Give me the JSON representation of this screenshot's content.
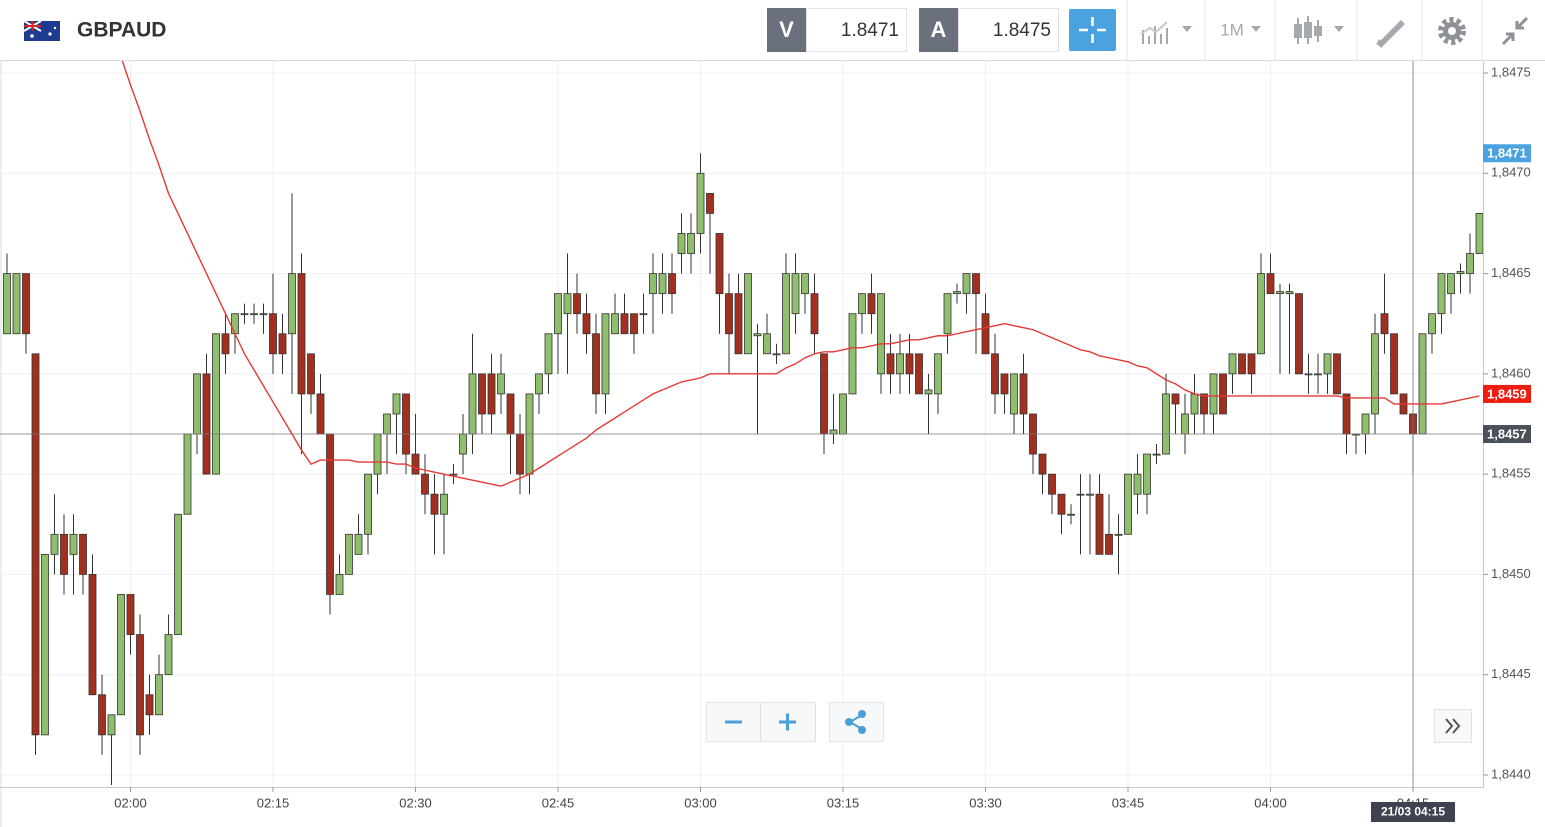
{
  "toolbar": {
    "symbol": "GBPAUD",
    "sell": {
      "label": "V",
      "price": "1.8471"
    },
    "buy": {
      "label": "A",
      "price": "1.8475"
    },
    "timeframe": "1M"
  },
  "chart_data": {
    "type": "candlestick",
    "categories": [
      null,
      null,
      null,
      null,
      null,
      null,
      null,
      null,
      null,
      null,
      null,
      null,
      null,
      "02:00",
      null,
      null,
      null,
      null,
      null,
      null,
      null,
      null,
      null,
      null,
      null,
      null,
      null,
      null,
      "02:15",
      null,
      null,
      null,
      null,
      null,
      null,
      null,
      null,
      null,
      null,
      null,
      null,
      null,
      null,
      "02:30",
      null,
      null,
      null,
      null,
      null,
      null,
      null,
      null,
      null,
      null,
      null,
      null,
      null,
      null,
      "02:45",
      null,
      null,
      null,
      null,
      null,
      null,
      null,
      null,
      null,
      null,
      null,
      null,
      null,
      null,
      "03:00",
      null,
      null,
      null,
      null,
      null,
      null,
      null,
      null,
      null,
      null,
      null,
      null,
      null,
      null,
      "03:15",
      null,
      null,
      null,
      null,
      null,
      null,
      null,
      null,
      null,
      null,
      null,
      null,
      null,
      null,
      "03:30",
      null,
      null,
      null,
      null,
      null,
      null,
      null,
      null,
      null,
      null,
      null,
      null,
      null,
      null,
      "03:45",
      null,
      null,
      null,
      null,
      null,
      null,
      null,
      null,
      null,
      null,
      null,
      null,
      null,
      null,
      "04:00",
      null,
      null,
      null,
      null,
      null,
      null,
      null,
      null,
      null,
      null,
      null,
      null,
      null,
      null,
      "04:15",
      null,
      null,
      null,
      null,
      null,
      null,
      null
    ],
    "open": [
      1.8462,
      1.8462,
      1.8465,
      1.8461,
      1.8442,
      1.8451,
      1.8452,
      1.8451,
      1.8452,
      1.845,
      1.8444,
      1.8442,
      1.8443,
      1.8449,
      1.8447,
      1.8444,
      1.8443,
      1.8445,
      1.8447,
      1.8453,
      1.8457,
      1.846,
      1.8455,
      1.8462,
      1.8462,
      1.8463,
      1.8463,
      1.8463,
      1.8463,
      1.8462,
      1.8462,
      1.8465,
      1.8461,
      1.8459,
      1.8457,
      1.8449,
      1.845,
      1.8451,
      1.8452,
      1.8455,
      1.8457,
      1.8458,
      1.8459,
      1.8456,
      1.8455,
      1.8454,
      1.8453,
      1.8455,
      1.8456,
      1.8457,
      1.846,
      1.846,
      1.8459,
      1.8459,
      1.8457,
      1.8455,
      1.8459,
      1.846,
      1.8462,
      1.8463,
      1.8464,
      1.8463,
      1.8462,
      1.8459,
      1.8462,
      1.8463,
      1.8463,
      1.8463,
      1.8464,
      1.8464,
      1.8465,
      1.8466,
      1.8466,
      1.8467,
      1.8469,
      1.8467,
      1.8464,
      1.8464,
      1.8461,
      1.84619,
      1.8461,
      1.8461,
      1.8461,
      1.8463,
      1.8464,
      1.8464,
      1.8461,
      1.8457,
      1.8457,
      1.8459,
      1.8463,
      1.8464,
      1.846,
      1.8461,
      1.846,
      1.8461,
      1.8461,
      1.8459,
      1.8459,
      1.8462,
      1.8464,
      1.8464,
      1.8465,
      1.8463,
      1.8461,
      1.846,
      1.8458,
      1.846,
      1.8458,
      1.8456,
      1.8455,
      1.8454,
      1.8453,
      1.8454,
      1.8454,
      1.8454,
      1.8452,
      1.8452,
      1.8452,
      1.8454,
      1.8454,
      1.8456,
      1.8456,
      1.8459,
      1.8457,
      1.8458,
      1.8459,
      1.8458,
      1.846,
      1.846,
      1.8461,
      1.8461,
      1.8461,
      1.8465,
      1.8464,
      1.8464,
      1.8464,
      1.846,
      1.846,
      1.846,
      1.8461,
      1.8459,
      1.8457,
      1.8457,
      1.8458,
      1.8463,
      1.8462,
      1.8459,
      1.8458,
      1.8457,
      1.8462,
      1.8463,
      1.8464,
      1.8465,
      1.8465,
      1.8466
    ],
    "high": [
      1.8466,
      1.8465,
      1.8465,
      1.8461,
      1.8451,
      1.8454,
      1.8453,
      1.8453,
      1.8452,
      1.8451,
      1.8445,
      1.8443,
      1.8449,
      1.8449,
      1.8448,
      1.8445,
      1.8446,
      1.8448,
      1.8453,
      1.8457,
      1.846,
      1.8461,
      1.8462,
      1.8463,
      1.8463,
      1.84635,
      1.84635,
      1.84635,
      1.8465,
      1.8463,
      1.8469,
      1.8466,
      1.8461,
      1.846,
      1.8457,
      1.8451,
      1.8452,
      1.8453,
      1.8455,
      1.8457,
      1.8458,
      1.8459,
      1.8459,
      1.8458,
      1.8456,
      1.8455,
      1.8455,
      1.84555,
      1.8458,
      1.8462,
      1.846,
      1.8461,
      1.8461,
      1.8459,
      1.8458,
      1.8459,
      1.846,
      1.8462,
      1.8464,
      1.8466,
      1.8465,
      1.8464,
      1.8463,
      1.8463,
      1.8464,
      1.8464,
      1.8463,
      1.8464,
      1.8466,
      1.8466,
      1.8466,
      1.8468,
      1.8468,
      1.8471,
      1.8469,
      1.8467,
      1.8465,
      1.8465,
      1.8465,
      1.84625,
      1.8463,
      1.84615,
      1.8466,
      1.8466,
      1.8465,
      1.8465,
      1.8461,
      1.8459,
      1.8459,
      1.8463,
      1.8464,
      1.8465,
      1.8464,
      1.8462,
      1.8462,
      1.8462,
      1.8461,
      1.846,
      1.8461,
      1.8464,
      1.84645,
      1.8465,
      1.8465,
      1.8464,
      1.8462,
      1.846,
      1.846,
      1.8461,
      1.8458,
      1.8456,
      1.8455,
      1.8454,
      1.84535,
      1.8455,
      1.8455,
      1.8455,
      1.8454,
      1.8453,
      1.8455,
      1.8456,
      1.8456,
      1.84565,
      1.846,
      1.8459,
      1.8459,
      1.846,
      1.8459,
      1.846,
      1.846,
      1.8461,
      1.8461,
      1.8461,
      1.8466,
      1.8466,
      1.84645,
      1.84645,
      1.8464,
      1.8461,
      1.8461,
      1.8461,
      1.8461,
      1.8459,
      1.8457,
      1.8458,
      1.8463,
      1.8465,
      1.8462,
      1.8459,
      1.8458,
      1.8462,
      1.8463,
      1.8465,
      1.8465,
      1.84655,
      1.8467,
      1.8468
    ],
    "low": [
      1.8462,
      1.8462,
      1.8461,
      1.8441,
      1.8442,
      1.845,
      1.8449,
      1.8449,
      1.8449,
      1.8444,
      1.8441,
      1.84395,
      1.8443,
      1.8446,
      1.8441,
      1.8442,
      1.8443,
      1.8445,
      1.8447,
      1.8453,
      1.8456,
      1.8455,
      1.8455,
      1.846,
      1.8461,
      1.84625,
      1.84625,
      1.8462,
      1.846,
      1.846,
      1.8459,
      1.8456,
      1.8458,
      1.8457,
      1.8448,
      1.8449,
      1.845,
      1.8451,
      1.8451,
      1.8454,
      1.8455,
      1.8456,
      1.8455,
      1.8455,
      1.8453,
      1.8451,
      1.8451,
      1.84545,
      1.8455,
      1.8456,
      1.8457,
      1.8457,
      1.8458,
      1.8455,
      1.8454,
      1.8454,
      1.8458,
      1.8459,
      1.846,
      1.846,
      1.8462,
      1.8461,
      1.8458,
      1.8458,
      1.8462,
      1.8462,
      1.8461,
      1.8462,
      1.8462,
      1.8463,
      1.8463,
      1.8465,
      1.8465,
      1.8466,
      1.8465,
      1.8462,
      1.846,
      1.8461,
      1.8461,
      1.8457,
      1.8461,
      1.84605,
      1.8461,
      1.8462,
      1.8463,
      1.8461,
      1.8456,
      1.84565,
      1.8457,
      1.8459,
      1.8462,
      1.8462,
      1.8459,
      1.8459,
      1.8459,
      1.8459,
      1.8459,
      1.8457,
      1.8458,
      1.8461,
      1.84635,
      1.8463,
      1.8461,
      1.8461,
      1.8458,
      1.8458,
      1.8457,
      1.8457,
      1.8455,
      1.8454,
      1.8453,
      1.8452,
      1.84525,
      1.8451,
      1.8451,
      1.8451,
      1.8451,
      1.845,
      1.8452,
      1.8453,
      1.8453,
      1.84555,
      1.8456,
      1.8457,
      1.8456,
      1.8457,
      1.8457,
      1.8457,
      1.8458,
      1.8459,
      1.846,
      1.8459,
      1.8461,
      1.8464,
      1.846,
      1.846,
      1.846,
      1.8459,
      1.8459,
      1.8459,
      1.8459,
      1.8456,
      1.8456,
      1.8456,
      1.8457,
      1.8461,
      1.8459,
      1.8458,
      1.8455,
      1.8457,
      1.8461,
      1.8462,
      1.8463,
      1.8464,
      1.8464,
      1.8466
    ],
    "close": [
      1.8465,
      1.8465,
      1.8462,
      1.8442,
      1.8451,
      1.8452,
      1.845,
      1.8452,
      1.845,
      1.8444,
      1.8442,
      1.8443,
      1.8449,
      1.8447,
      1.8442,
      1.8443,
      1.8445,
      1.8447,
      1.8453,
      1.8457,
      1.846,
      1.8455,
      1.8462,
      1.8461,
      1.8463,
      1.8463,
      1.8463,
      1.8463,
      1.8461,
      1.8461,
      1.8465,
      1.8459,
      1.8459,
      1.8457,
      1.8449,
      1.845,
      1.8452,
      1.8452,
      1.8455,
      1.8457,
      1.8458,
      1.8459,
      1.8456,
      1.8455,
      1.8454,
      1.8453,
      1.8454,
      1.8455,
      1.8457,
      1.846,
      1.8458,
      1.8458,
      1.846,
      1.8457,
      1.8455,
      1.8459,
      1.846,
      1.8462,
      1.8464,
      1.8464,
      1.8463,
      1.8462,
      1.8459,
      1.8463,
      1.8463,
      1.8462,
      1.8462,
      1.8463,
      1.8465,
      1.8465,
      1.8464,
      1.8467,
      1.8467,
      1.847,
      1.8468,
      1.8464,
      1.8462,
      1.8461,
      1.8465,
      1.8462,
      1.8462,
      1.8461,
      1.8465,
      1.8465,
      1.8465,
      1.8462,
      1.8457,
      1.84572,
      1.8459,
      1.8463,
      1.8464,
      1.8463,
      1.8464,
      1.846,
      1.8461,
      1.846,
      1.8459,
      1.84592,
      1.8461,
      1.8464,
      1.84641,
      1.8465,
      1.8464,
      1.8461,
      1.8459,
      1.8459,
      1.846,
      1.8458,
      1.8456,
      1.8455,
      1.8454,
      1.8453,
      1.8453,
      1.8454,
      1.8454,
      1.8451,
      1.8451,
      1.8452,
      1.8455,
      1.8455,
      1.8456,
      1.8456,
      1.8459,
      1.84585,
      1.8458,
      1.8459,
      1.8458,
      1.846,
      1.8458,
      1.8461,
      1.846,
      1.846,
      1.8465,
      1.8464,
      1.84641,
      1.84641,
      1.846,
      1.846,
      1.846,
      1.8461,
      1.8459,
      1.8457,
      1.8457,
      1.8458,
      1.8462,
      1.8462,
      1.8459,
      1.8458,
      1.8457,
      1.8462,
      1.8463,
      1.8465,
      1.8465,
      1.84651,
      1.8466,
      1.8468
    ],
    "up_color": "#8fbe6c",
    "down_color": "#a3301f",
    "ma": {
      "color": "#e53935",
      "values": [
        null,
        null,
        null,
        null,
        null,
        null,
        null,
        null,
        null,
        null,
        null,
        1.84771,
        1.84758,
        1.84744,
        1.84731,
        1.84717,
        1.84704,
        1.8469,
        1.8468,
        1.8467,
        1.8466,
        1.8465,
        1.8464,
        1.8463,
        1.8462,
        1.8461,
        1.84602,
        1.84594,
        1.84586,
        1.84578,
        1.8457,
        1.84562,
        1.84555,
        1.84557,
        1.84557,
        1.84557,
        1.84557,
        1.84556,
        1.84556,
        1.84556,
        1.84556,
        1.84555,
        1.84555,
        1.84553,
        1.84552,
        1.84551,
        1.8455,
        1.84549,
        1.84548,
        1.84547,
        1.84546,
        1.84545,
        1.84544,
        1.84546,
        1.84548,
        1.8455,
        1.84553,
        1.84556,
        1.84559,
        1.84562,
        1.84565,
        1.84568,
        1.84572,
        1.84575,
        1.84578,
        1.84581,
        1.84584,
        1.84587,
        1.8459,
        1.84592,
        1.84594,
        1.84596,
        1.84597,
        1.84598,
        1.846,
        1.846,
        1.846,
        1.846,
        1.846,
        1.846,
        1.846,
        1.846,
        1.84603,
        1.84605,
        1.84608,
        1.8461,
        1.84611,
        1.84611,
        1.84612,
        1.84613,
        1.84613,
        1.84614,
        1.84615,
        1.84615,
        1.84616,
        1.84617,
        1.84617,
        1.84618,
        1.84619,
        1.84619,
        1.8462,
        1.84621,
        1.84622,
        1.84623,
        1.84624,
        1.84625,
        1.84624,
        1.84623,
        1.84622,
        1.8462,
        1.84618,
        1.84616,
        1.84614,
        1.84612,
        1.84611,
        1.84609,
        1.84608,
        1.84607,
        1.84606,
        1.84604,
        1.84603,
        1.846,
        1.84597,
        1.84595,
        1.84592,
        1.8459,
        1.84589,
        1.84589,
        1.84589,
        1.84589,
        1.84589,
        1.84589,
        1.84589,
        1.84589,
        1.84589,
        1.84589,
        1.84589,
        1.84589,
        1.84589,
        1.84589,
        1.84589,
        1.84588,
        1.84588,
        1.84588,
        1.84588,
        1.84588,
        1.84585,
        1.84585,
        1.84585,
        1.84585,
        1.84585,
        1.84585,
        1.84586,
        1.84587,
        1.84588,
        1.84589
      ]
    },
    "ylim": [
      1.84394,
      1.84756
    ],
    "yticks": [
      {
        "value": 1.844,
        "label": "1,8440"
      },
      {
        "value": 1.8445,
        "label": "1,8445"
      },
      {
        "value": 1.845,
        "label": "1,8450"
      },
      {
        "value": 1.8455,
        "label": "1,8455"
      },
      {
        "value": 1.846,
        "label": "1,8460"
      },
      {
        "value": 1.8465,
        "label": "1,8465"
      },
      {
        "value": 1.847,
        "label": "1,8470"
      },
      {
        "value": 1.8475,
        "label": "1,8475"
      }
    ],
    "grid": true,
    "price_tags": [
      {
        "value": 1.8471,
        "label": "1,8471",
        "color": "#4aa3df"
      },
      {
        "value": 1.8459,
        "label": "1,8459",
        "color": "#ee1c10"
      }
    ],
    "crosshair": {
      "label": "21/03 04:15",
      "price": {
        "value": 1.8457,
        "label": "1,8457"
      },
      "color": "#4a505a"
    }
  }
}
